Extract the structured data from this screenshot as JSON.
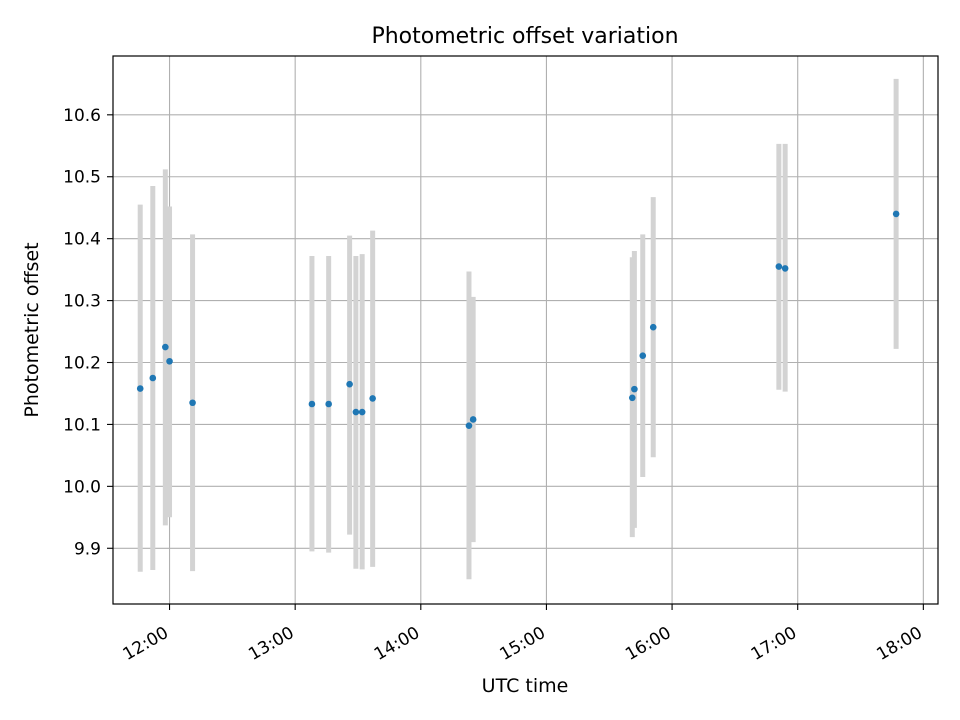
{
  "chart_data": {
    "type": "scatter",
    "title": "Photometric offset variation",
    "xlabel": "UTC time",
    "ylabel": "Photometric offset",
    "xlim": [
      "11:33",
      "18:07"
    ],
    "ylim": [
      9.81,
      10.695
    ],
    "x_ticks": [
      "12:00",
      "13:00",
      "14:00",
      "15:00",
      "16:00",
      "17:00",
      "18:00"
    ],
    "y_ticks": [
      "9.9",
      "10.0",
      "10.1",
      "10.2",
      "10.3",
      "10.4",
      "10.5",
      "10.6"
    ],
    "grid": true,
    "marker_color": "#1f77b4",
    "errorbar_color": "#d3d3d3",
    "series": [
      {
        "points": [
          {
            "t": "11:46",
            "y": 10.158,
            "lo": 9.862,
            "hi": 10.455
          },
          {
            "t": "11:52",
            "y": 10.175,
            "lo": 9.865,
            "hi": 10.485
          },
          {
            "t": "11:58",
            "y": 10.225,
            "lo": 9.937,
            "hi": 10.512
          },
          {
            "t": "12:00",
            "y": 10.202,
            "lo": 9.95,
            "hi": 10.452
          },
          {
            "t": "12:11",
            "y": 10.135,
            "lo": 9.863,
            "hi": 10.407
          },
          {
            "t": "13:08",
            "y": 10.133,
            "lo": 9.895,
            "hi": 10.372
          },
          {
            "t": "13:16",
            "y": 10.133,
            "lo": 9.893,
            "hi": 10.372
          },
          {
            "t": "13:26",
            "y": 10.165,
            "lo": 9.922,
            "hi": 10.405
          },
          {
            "t": "13:29",
            "y": 10.12,
            "lo": 9.867,
            "hi": 10.372
          },
          {
            "t": "13:32",
            "y": 10.12,
            "lo": 9.866,
            "hi": 10.375
          },
          {
            "t": "13:37",
            "y": 10.142,
            "lo": 9.87,
            "hi": 10.413
          },
          {
            "t": "14:23",
            "y": 10.098,
            "lo": 9.85,
            "hi": 10.347
          },
          {
            "t": "14:25",
            "y": 10.108,
            "lo": 9.91,
            "hi": 10.306
          },
          {
            "t": "15:41",
            "y": 10.143,
            "lo": 9.918,
            "hi": 10.37
          },
          {
            "t": "15:42",
            "y": 10.157,
            "lo": 9.933,
            "hi": 10.38
          },
          {
            "t": "15:46",
            "y": 10.211,
            "lo": 10.015,
            "hi": 10.407
          },
          {
            "t": "15:51",
            "y": 10.257,
            "lo": 10.047,
            "hi": 10.467
          },
          {
            "t": "16:51",
            "y": 10.355,
            "lo": 10.156,
            "hi": 10.553
          },
          {
            "t": "16:54",
            "y": 10.352,
            "lo": 10.153,
            "hi": 10.553
          },
          {
            "t": "17:47",
            "y": 10.44,
            "lo": 10.222,
            "hi": 10.658
          }
        ]
      }
    ]
  }
}
